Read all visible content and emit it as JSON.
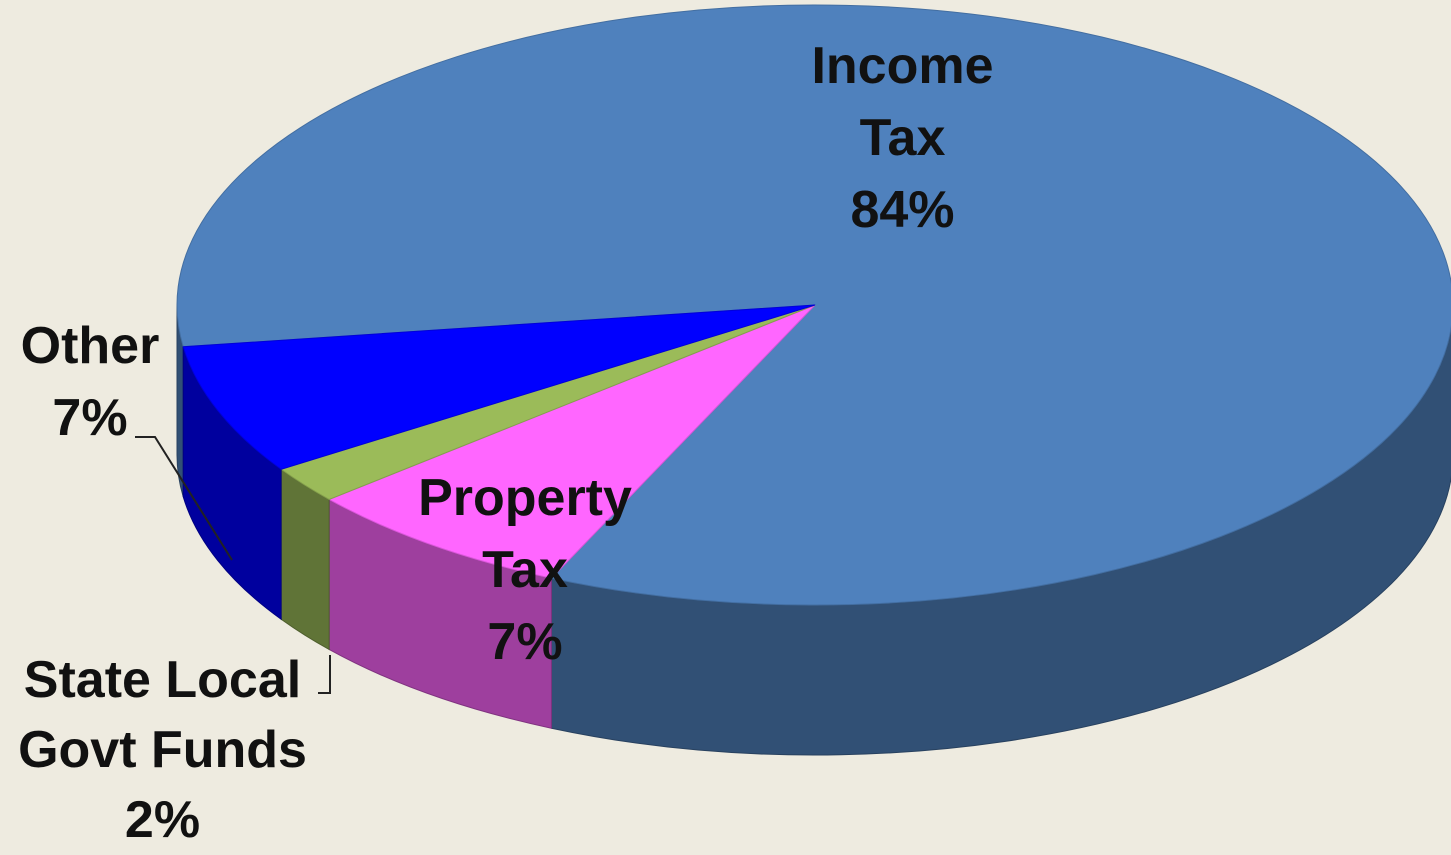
{
  "chart_data": {
    "type": "pie",
    "categories": [
      "Income Tax",
      "Property Tax",
      "State Local Govt Funds",
      "Other"
    ],
    "values": [
      84,
      7,
      2,
      7
    ],
    "value_labels": [
      "84%",
      "7%",
      "2%",
      "7%"
    ],
    "colors": [
      "#4f81bd",
      "#ff66ff",
      "#9bbb59",
      "#0000ff"
    ]
  }
}
